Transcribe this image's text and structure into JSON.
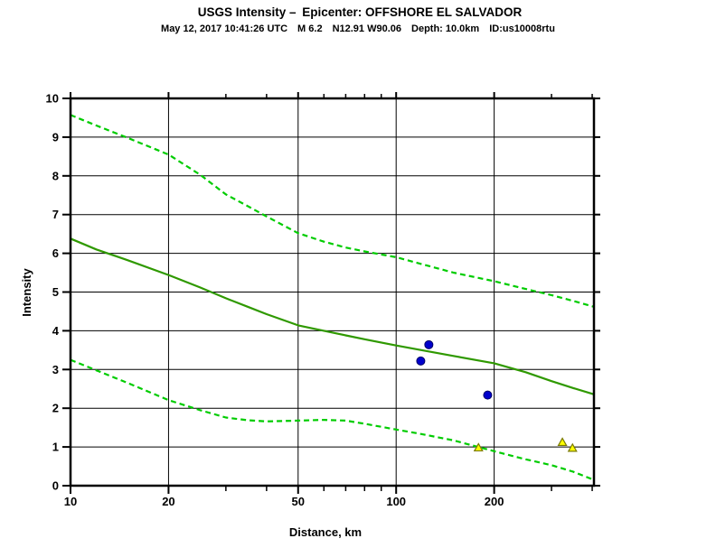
{
  "header": {
    "title": "USGS Intensity – Epicenter: OFFSHORE EL SALVADOR",
    "subtitle": "May 12, 2017 10:41:26 UTC  M 6.2  N12.91 W90.06  Depth: 10.0km  ID:us10008rtu"
  },
  "chart_data": {
    "type": "line",
    "title": "USGS Intensity - Epicenter: OFFSHORE EL SALVADOR",
    "subtitle": "May 12, 2017 10:41:26 UTC  M 6.2  N12.91 W90.06  Depth: 10.0km  ID:us10008rtu",
    "xlabel": "Distance, km",
    "ylabel": "Intensity",
    "x_scale": "log",
    "xlim": [
      10,
      405
    ],
    "ylim": [
      0,
      10
    ],
    "x_ticks_labeled": [
      10,
      20,
      50,
      100,
      200
    ],
    "x_ticks_minor": [
      30,
      40,
      60,
      70,
      80,
      90,
      300,
      400
    ],
    "y_ticks": [
      0,
      1,
      2,
      3,
      4,
      5,
      6,
      7,
      8,
      9,
      10
    ],
    "grid": true,
    "legend": "none",
    "colors": {
      "bound_dashed": "#00cc00",
      "median_solid": "#2f9900",
      "circle_fill": "#0000cc",
      "circle_stroke": "#000066",
      "triangle_fill": "#ffff00",
      "triangle_stroke": "#7a7a00",
      "frame": "#000000"
    },
    "series": [
      {
        "name": "upper-bound",
        "style": "dashed",
        "color_key": "bound_dashed",
        "points": [
          [
            10,
            9.57
          ],
          [
            12,
            9.3
          ],
          [
            15,
            8.98
          ],
          [
            20,
            8.55
          ],
          [
            25,
            8.03
          ],
          [
            30,
            7.52
          ],
          [
            35,
            7.22
          ],
          [
            40,
            6.95
          ],
          [
            50,
            6.52
          ],
          [
            60,
            6.3
          ],
          [
            70,
            6.15
          ],
          [
            80,
            6.05
          ],
          [
            100,
            5.9
          ],
          [
            120,
            5.72
          ],
          [
            150,
            5.5
          ],
          [
            200,
            5.28
          ],
          [
            250,
            5.08
          ],
          [
            300,
            4.92
          ],
          [
            350,
            4.77
          ],
          [
            405,
            4.62
          ]
        ]
      },
      {
        "name": "median-prediction",
        "style": "solid",
        "color_key": "median_solid",
        "points": [
          [
            10,
            6.38
          ],
          [
            12,
            6.1
          ],
          [
            15,
            5.82
          ],
          [
            20,
            5.44
          ],
          [
            25,
            5.12
          ],
          [
            30,
            4.84
          ],
          [
            35,
            4.62
          ],
          [
            40,
            4.43
          ],
          [
            50,
            4.14
          ],
          [
            60,
            4.0
          ],
          [
            70,
            3.88
          ],
          [
            80,
            3.78
          ],
          [
            100,
            3.62
          ],
          [
            120,
            3.5
          ],
          [
            150,
            3.35
          ],
          [
            200,
            3.16
          ],
          [
            250,
            2.93
          ],
          [
            300,
            2.7
          ],
          [
            350,
            2.52
          ],
          [
            405,
            2.36
          ]
        ]
      },
      {
        "name": "lower-bound",
        "style": "dashed",
        "color_key": "bound_dashed",
        "points": [
          [
            10,
            3.25
          ],
          [
            12,
            2.98
          ],
          [
            15,
            2.65
          ],
          [
            20,
            2.21
          ],
          [
            25,
            1.95
          ],
          [
            30,
            1.76
          ],
          [
            35,
            1.69
          ],
          [
            40,
            1.66
          ],
          [
            50,
            1.68
          ],
          [
            60,
            1.7
          ],
          [
            70,
            1.68
          ],
          [
            80,
            1.6
          ],
          [
            100,
            1.45
          ],
          [
            120,
            1.33
          ],
          [
            150,
            1.17
          ],
          [
            200,
            0.89
          ],
          [
            250,
            0.68
          ],
          [
            300,
            0.53
          ],
          [
            350,
            0.36
          ],
          [
            405,
            0.15
          ]
        ]
      }
    ],
    "scatter": [
      {
        "name": "observed-intensity-circles",
        "marker": "circle",
        "fill_key": "circle_fill",
        "stroke_key": "circle_stroke",
        "points": [
          [
            119,
            3.22
          ],
          [
            126,
            3.64
          ],
          [
            191,
            2.34
          ]
        ]
      },
      {
        "name": "felt-report-triangles",
        "marker": "triangle",
        "fill_key": "triangle_fill",
        "stroke_key": "triangle_stroke",
        "points": [
          [
            179,
            0.98
          ],
          [
            324,
            1.12
          ],
          [
            348,
            0.97
          ]
        ]
      }
    ]
  }
}
